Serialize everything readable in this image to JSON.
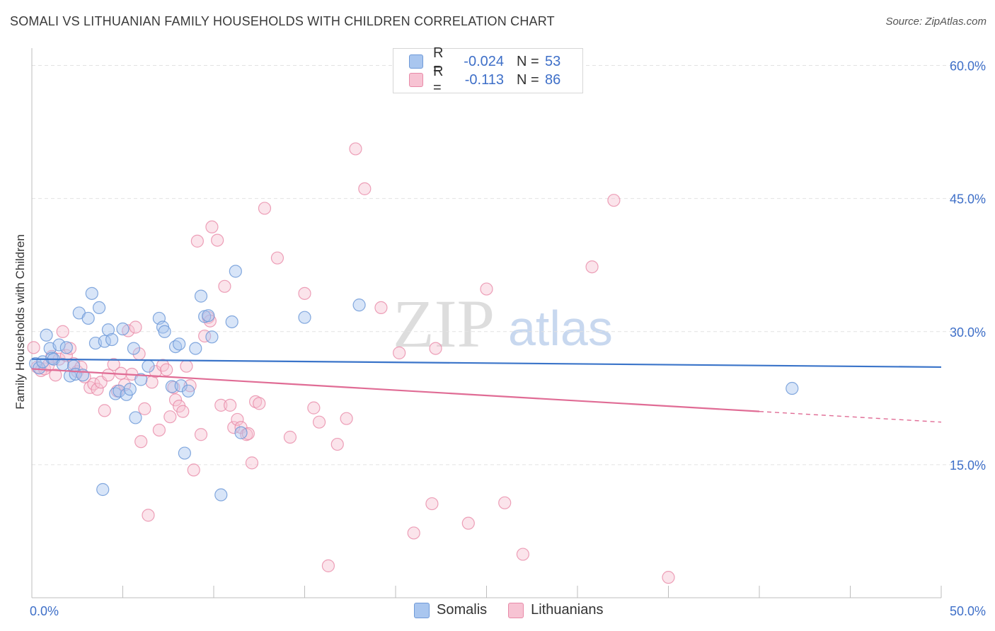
{
  "title": "SOMALI VS LITHUANIAN FAMILY HOUSEHOLDS WITH CHILDREN CORRELATION CHART",
  "source": "Source: ZipAtlas.com",
  "watermark": {
    "zip": "ZIP",
    "atlas": "atlas"
  },
  "legend": {
    "somali": {
      "r_label": "R =",
      "r_value": "-0.024",
      "n_label": "N =",
      "n_value": "53"
    },
    "lithuanian": {
      "r_label": "R =",
      "r_value": "-0.113",
      "n_label": "N =",
      "n_value": "86"
    }
  },
  "colors": {
    "somali_fill": "#a9c6ef",
    "somali_stroke": "#6f9ad8",
    "somali_line": "#3a74c9",
    "lithuanian_fill": "#f7c3d3",
    "lithuanian_stroke": "#e88aa8",
    "lithuanian_line": "#e06c95",
    "axis_label": "#3e6fc8",
    "grid": "#e3e3e3"
  },
  "chart_data": {
    "type": "scatter",
    "title": "SOMALI VS LITHUANIAN FAMILY HOUSEHOLDS WITH CHILDREN CORRELATION CHART",
    "xlabel": "",
    "ylabel": "Family Households with Children",
    "xlim": [
      0,
      50
    ],
    "ylim": [
      0,
      61
    ],
    "x_tick_labels": [
      "0.0%",
      "50.0%"
    ],
    "y_ticks": [
      15,
      30,
      45,
      60
    ],
    "y_tick_labels": [
      "15.0%",
      "30.0%",
      "45.0%",
      "60.0%"
    ],
    "grid": true,
    "legend_position": "top-center",
    "series": [
      {
        "name": "Somalis",
        "trend": {
          "x0": 0,
          "y0": 26.9,
          "x1": 50,
          "y1": 26.0
        },
        "points": [
          [
            0.2,
            26.4
          ],
          [
            0.4,
            25.9
          ],
          [
            0.6,
            26.6
          ],
          [
            0.8,
            29.6
          ],
          [
            1.0,
            28.1
          ],
          [
            1.1,
            27.0
          ],
          [
            1.2,
            26.9
          ],
          [
            1.5,
            28.5
          ],
          [
            1.7,
            26.3
          ],
          [
            1.9,
            28.2
          ],
          [
            2.1,
            25.0
          ],
          [
            2.3,
            26.1
          ],
          [
            2.4,
            25.2
          ],
          [
            2.6,
            32.1
          ],
          [
            2.8,
            25.1
          ],
          [
            3.1,
            31.5
          ],
          [
            3.3,
            34.3
          ],
          [
            3.5,
            28.7
          ],
          [
            3.7,
            32.7
          ],
          [
            4.0,
            28.9
          ],
          [
            4.2,
            30.2
          ],
          [
            4.4,
            29.1
          ],
          [
            4.6,
            23.0
          ],
          [
            4.8,
            23.3
          ],
          [
            5.0,
            30.3
          ],
          [
            5.2,
            22.9
          ],
          [
            5.4,
            23.5
          ],
          [
            5.6,
            28.1
          ],
          [
            5.7,
            20.3
          ],
          [
            6.0,
            24.6
          ],
          [
            6.4,
            26.1
          ],
          [
            7.0,
            31.5
          ],
          [
            7.2,
            30.5
          ],
          [
            7.3,
            30.0
          ],
          [
            7.7,
            23.8
          ],
          [
            7.9,
            28.3
          ],
          [
            8.1,
            28.6
          ],
          [
            8.2,
            23.9
          ],
          [
            8.4,
            16.3
          ],
          [
            8.6,
            23.3
          ],
          [
            9.0,
            28.1
          ],
          [
            9.3,
            34.0
          ],
          [
            9.5,
            31.7
          ],
          [
            9.7,
            31.8
          ],
          [
            9.9,
            29.4
          ],
          [
            10.4,
            11.6
          ],
          [
            11.0,
            31.1
          ],
          [
            11.2,
            36.8
          ],
          [
            11.5,
            18.6
          ],
          [
            15.0,
            31.6
          ],
          [
            18.0,
            33.0
          ],
          [
            41.8,
            23.6
          ],
          [
            3.9,
            12.2
          ]
        ]
      },
      {
        "name": "Lithuanians",
        "trend": {
          "x0": 0,
          "y0": 25.8,
          "x1": 40,
          "y1": 21.0
        },
        "trend_dashed": {
          "x0": 40,
          "y0": 21.0,
          "x1": 50,
          "y1": 19.8
        },
        "points": [
          [
            0.1,
            28.2
          ],
          [
            0.3,
            26.0
          ],
          [
            0.5,
            25.6
          ],
          [
            0.7,
            25.8
          ],
          [
            0.9,
            26.2
          ],
          [
            1.1,
            27.2
          ],
          [
            1.3,
            25.1
          ],
          [
            1.5,
            26.9
          ],
          [
            1.7,
            30.0
          ],
          [
            1.9,
            27.3
          ],
          [
            2.1,
            28.1
          ],
          [
            2.3,
            26.4
          ],
          [
            2.5,
            25.5
          ],
          [
            2.7,
            26.0
          ],
          [
            2.9,
            24.9
          ],
          [
            3.2,
            23.7
          ],
          [
            3.4,
            24.1
          ],
          [
            3.6,
            23.5
          ],
          [
            3.8,
            24.3
          ],
          [
            4.0,
            21.1
          ],
          [
            4.2,
            25.1
          ],
          [
            4.5,
            26.3
          ],
          [
            4.7,
            23.3
          ],
          [
            4.9,
            25.3
          ],
          [
            5.1,
            24.0
          ],
          [
            5.3,
            30.1
          ],
          [
            5.5,
            25.2
          ],
          [
            5.7,
            30.5
          ],
          [
            5.9,
            27.5
          ],
          [
            6.0,
            17.6
          ],
          [
            6.2,
            21.3
          ],
          [
            6.4,
            9.3
          ],
          [
            6.6,
            24.3
          ],
          [
            6.8,
            25.5
          ],
          [
            7.0,
            18.9
          ],
          [
            7.2,
            26.2
          ],
          [
            7.4,
            25.7
          ],
          [
            7.6,
            20.4
          ],
          [
            7.8,
            23.7
          ],
          [
            7.9,
            22.3
          ],
          [
            8.1,
            21.6
          ],
          [
            8.3,
            21.0
          ],
          [
            8.5,
            26.1
          ],
          [
            8.7,
            23.9
          ],
          [
            8.9,
            14.4
          ],
          [
            9.1,
            40.2
          ],
          [
            9.3,
            18.4
          ],
          [
            9.5,
            29.5
          ],
          [
            9.7,
            31.6
          ],
          [
            9.9,
            41.8
          ],
          [
            10.2,
            40.3
          ],
          [
            10.4,
            21.7
          ],
          [
            10.6,
            35.1
          ],
          [
            10.9,
            21.7
          ],
          [
            11.1,
            19.2
          ],
          [
            11.3,
            20.1
          ],
          [
            11.5,
            19.2
          ],
          [
            11.8,
            18.4
          ],
          [
            12.1,
            15.2
          ],
          [
            12.3,
            22.1
          ],
          [
            12.8,
            43.9
          ],
          [
            13.5,
            38.3
          ],
          [
            14.2,
            18.1
          ],
          [
            15.0,
            34.3
          ],
          [
            15.5,
            21.4
          ],
          [
            15.8,
            19.8
          ],
          [
            16.3,
            3.6
          ],
          [
            16.8,
            17.3
          ],
          [
            17.3,
            20.2
          ],
          [
            17.8,
            50.6
          ],
          [
            18.3,
            46.1
          ],
          [
            19.2,
            32.7
          ],
          [
            20.2,
            27.6
          ],
          [
            21.0,
            7.3
          ],
          [
            22.0,
            10.6
          ],
          [
            22.2,
            28.1
          ],
          [
            24.0,
            8.4
          ],
          [
            25.0,
            34.8
          ],
          [
            26.0,
            10.7
          ],
          [
            27.0,
            4.9
          ],
          [
            30.8,
            37.3
          ],
          [
            32.0,
            44.8
          ],
          [
            35.0,
            2.3
          ],
          [
            11.9,
            18.5
          ],
          [
            12.5,
            21.9
          ],
          [
            9.8,
            31.2
          ]
        ]
      }
    ]
  }
}
